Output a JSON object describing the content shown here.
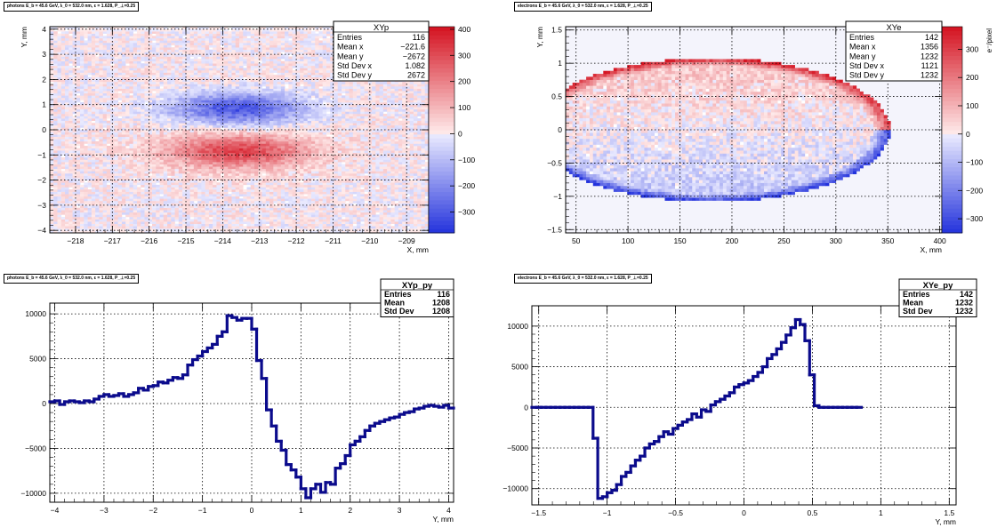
{
  "chart_data": [
    {
      "type": "heatmap",
      "panel_tag": "photons E_b = 45.6 GeV, λ_0 = 532.0 nm, ε = 1.628, P_⊥=0.25",
      "stats_title": "XYp",
      "stats": [
        [
          "Entries",
          "116"
        ],
        [
          "Mean x",
          "−221.6"
        ],
        [
          "Mean y",
          "−2672"
        ],
        [
          "Std Dev x",
          "1.082"
        ],
        [
          "Std Dev y",
          "2672"
        ]
      ],
      "xlabel": "X, mm",
      "ylabel": "Y, mm",
      "xlim": [
        -218.7,
        -208.4
      ],
      "ylim": [
        -4.1,
        4.1
      ],
      "xticks": [
        "−218",
        "−217",
        "−216",
        "−215",
        "−214",
        "−213",
        "−212",
        "−211",
        "−210",
        "−209"
      ],
      "xtick_values": [
        -218,
        -217,
        -216,
        -215,
        -214,
        -213,
        -212,
        -211,
        -210,
        -209
      ],
      "yticks": [
        "−4",
        "−3",
        "−2",
        "−1",
        "0",
        "1",
        "2",
        "3",
        "4"
      ],
      "ytick_values": [
        -4,
        -3,
        -2,
        -1,
        0,
        1,
        2,
        3,
        4
      ],
      "zlim": [
        -380,
        410
      ],
      "zticks": [
        "−300",
        "−200",
        "−100",
        "0",
        "100",
        "200",
        "300",
        "400"
      ],
      "ztick_values": [
        -300,
        -200,
        -100,
        0,
        100,
        200,
        300,
        400
      ],
      "zlabel": "",
      "features": [
        {
          "cx": -213.6,
          "cy": 0.85,
          "sx": 1.3,
          "sy": 0.45,
          "amp": -330
        },
        {
          "cx": -213.6,
          "cy": -0.85,
          "sx": 1.3,
          "sy": 0.45,
          "amp": 300
        },
        {
          "cx": -213.6,
          "cy": 0.0,
          "sx": 3.0,
          "sy": 2.2,
          "amp": 25
        }
      ]
    },
    {
      "type": "heatmap",
      "panel_tag": "electrons E_b = 45.6 GeV, λ_0 = 532.0 nm, ε = 1.628, P_⊥=0.25",
      "stats_title": "XYe",
      "stats": [
        [
          "Entries",
          "142"
        ],
        [
          "Mean x",
          "1356"
        ],
        [
          "Mean y",
          "1232"
        ],
        [
          "Std Dev x",
          "1121"
        ],
        [
          "Std Dev y",
          "1232"
        ]
      ],
      "xlabel": "X, mm",
      "ylabel": "Y, mm",
      "xlim": [
        40,
        402
      ],
      "ylim": [
        -1.55,
        1.55
      ],
      "xticks": [
        "50",
        "100",
        "150",
        "200",
        "250",
        "300",
        "350",
        "400"
      ],
      "xtick_values": [
        50,
        100,
        150,
        200,
        250,
        300,
        350,
        400
      ],
      "yticks": [
        "−1.5",
        "−1",
        "−0.5",
        "0",
        "0.5",
        "1",
        "1.5"
      ],
      "ytick_values": [
        -1.5,
        -1,
        -0.5,
        0,
        0.5,
        1,
        1.5
      ],
      "zlim": [
        -350,
        380
      ],
      "zticks": [
        "−300",
        "−200",
        "−100",
        "0",
        "100",
        "200",
        "300"
      ],
      "ztick_values": [
        -300,
        -200,
        -100,
        0,
        100,
        200,
        300
      ],
      "zlabel": "e⁻/pixel",
      "ellipse": {
        "cx": 180,
        "cy": 0.0,
        "rx": 172,
        "ry": 1.08
      }
    },
    {
      "type": "line",
      "panel_tag": "photons E_b = 45.6 GeV, λ_0 = 532.0 nm, ε = 1.628, P_⊥=0.25",
      "stats_title": "XYp_py",
      "stats": [
        [
          "Entries",
          "116"
        ],
        [
          "Mean",
          "1208"
        ],
        [
          "Std Dev",
          "1208"
        ]
      ],
      "xlabel": "Y, mm",
      "ylabel": "",
      "xlim": [
        -4.1,
        4.1
      ],
      "ylim": [
        -11000,
        11200
      ],
      "xticks": [
        "−4",
        "−3",
        "−2",
        "−1",
        "0",
        "1",
        "2",
        "3",
        "4"
      ],
      "xtick_values": [
        -4,
        -3,
        -2,
        -1,
        0,
        1,
        2,
        3,
        4
      ],
      "yticks": [
        "−10000",
        "−5000",
        "0",
        "5000",
        "10000"
      ],
      "ytick_values": [
        -10000,
        -5000,
        0,
        5000,
        10000
      ],
      "bin_edges_start": -4.1,
      "bin_width": 0.1,
      "values": [
        200,
        300,
        -100,
        200,
        300,
        200,
        100,
        300,
        200,
        500,
        800,
        1000,
        800,
        900,
        1100,
        800,
        1000,
        1200,
        1700,
        1500,
        1900,
        2000,
        2400,
        2300,
        2600,
        2900,
        2800,
        3200,
        4300,
        4900,
        5300,
        5800,
        6200,
        6600,
        7500,
        8000,
        9800,
        9600,
        9300,
        9500,
        9500,
        8300,
        4800,
        2800,
        -700,
        -2500,
        -4200,
        -5200,
        -6800,
        -7400,
        -8200,
        -9500,
        -10500,
        -9500,
        -9000,
        -9900,
        -8800,
        -9000,
        -7200,
        -6700,
        -5800,
        -4600,
        -4200,
        -3700,
        -3000,
        -2500,
        -2200,
        -2000,
        -1800,
        -1600,
        -1500,
        -1200,
        -1000,
        -900,
        -600,
        -500,
        -300,
        -200,
        -300,
        -400,
        -200,
        -500,
        -400
      ]
    },
    {
      "type": "line",
      "panel_tag": "electrons E_b = 45.6 GeV, λ_0 = 532.0 nm, ε = 1.628, P_⊥=0.25",
      "stats_title": "XYe_py",
      "stats": [
        [
          "Entries",
          "142"
        ],
        [
          "Mean",
          "1232"
        ],
        [
          "Std Dev",
          "1232"
        ]
      ],
      "xlabel": "Y, mm",
      "ylabel": "",
      "xlim": [
        -1.55,
        1.55
      ],
      "ylim": [
        -12000,
        12500
      ],
      "xticks": [
        "−1.5",
        "−1",
        "−0.5",
        "0",
        "0.5",
        "1",
        "1.5"
      ],
      "xtick_values": [
        -1.5,
        -1,
        -0.5,
        0,
        0.5,
        1,
        1.5
      ],
      "yticks": [
        "−10000",
        "−5000",
        "0",
        "5000",
        "10000"
      ],
      "ytick_values": [
        -10000,
        -5000,
        0,
        5000,
        10000
      ],
      "bin_edges_start": -1.55,
      "bin_width": 0.0344,
      "values": [
        0,
        0,
        0,
        0,
        0,
        0,
        0,
        0,
        0,
        0,
        0,
        0,
        0,
        -3800,
        -11200,
        -11000,
        -10500,
        -10200,
        -9500,
        -8500,
        -8000,
        -7200,
        -6500,
        -6000,
        -5000,
        -4500,
        -4200,
        -3600,
        -3000,
        -3300,
        -2600,
        -2200,
        -1800,
        -1500,
        -800,
        -1200,
        -300,
        -500,
        300,
        700,
        1000,
        1400,
        1800,
        2500,
        2800,
        3000,
        3300,
        3800,
        4300,
        5000,
        6000,
        6500,
        7200,
        8000,
        8900,
        9800,
        10800,
        10200,
        8200,
        4000,
        200,
        0,
        0,
        0,
        0,
        0,
        0,
        0,
        0,
        0
      ]
    }
  ]
}
